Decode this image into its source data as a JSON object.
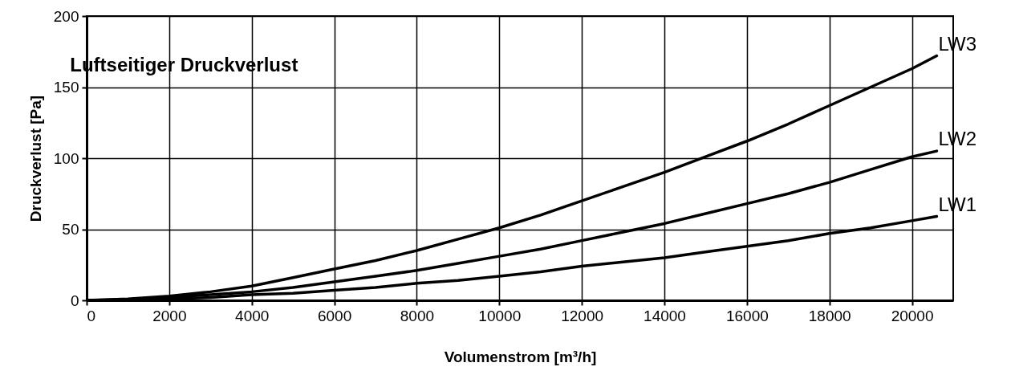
{
  "chart_data": {
    "type": "line",
    "title": "Luftseitiger Druckverlust",
    "xlabel": "Volumenstrom [m³/h]",
    "ylabel": "Druckverlust [Pa]",
    "x": [
      0,
      1000,
      2000,
      3000,
      4000,
      5000,
      6000,
      7000,
      8000,
      9000,
      10000,
      11000,
      12000,
      13000,
      14000,
      15000,
      16000,
      17000,
      18000,
      19000,
      20000,
      20600
    ],
    "series": [
      {
        "name": "LW3",
        "color": "#000000",
        "values": [
          0,
          1,
          3,
          6,
          10,
          16,
          22,
          28,
          35,
          43,
          51,
          60,
          70,
          80,
          90,
          101,
          112,
          124,
          137,
          150,
          163,
          172
        ]
      },
      {
        "name": "LW2",
        "color": "#000000",
        "values": [
          0,
          0.5,
          2,
          4,
          6,
          9,
          13,
          17,
          21,
          26,
          31,
          36,
          42,
          48,
          54,
          61,
          68,
          75,
          83,
          92,
          101,
          105
        ]
      },
      {
        "name": "LW1",
        "color": "#000000",
        "values": [
          0,
          0.3,
          1,
          2,
          4,
          5,
          7,
          9,
          12,
          14,
          17,
          20,
          24,
          27,
          30,
          34,
          38,
          42,
          47,
          51,
          56,
          59
        ]
      }
    ],
    "xlim": [
      0,
      21000
    ],
    "xticks": [
      0,
      2000,
      4000,
      6000,
      8000,
      10000,
      12000,
      14000,
      16000,
      18000,
      20000
    ],
    "ylim": [
      0,
      200
    ],
    "yticks": [
      0,
      50,
      100,
      150,
      200
    ],
    "grid": true,
    "line_style": "solid",
    "marker": "none"
  }
}
